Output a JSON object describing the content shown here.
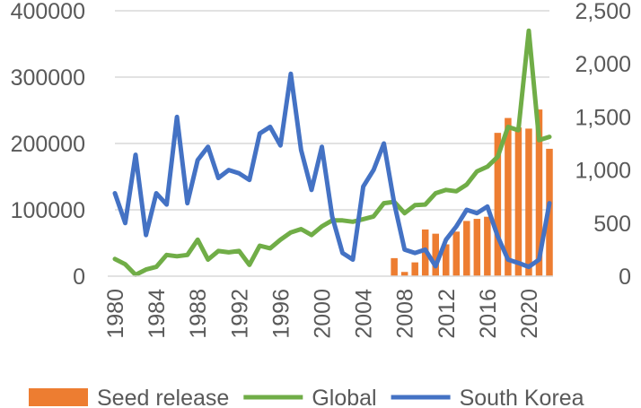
{
  "chart_data": {
    "type": "bar+line",
    "x": [
      1980,
      1981,
      1982,
      1983,
      1984,
      1985,
      1986,
      1987,
      1988,
      1989,
      1990,
      1991,
      1992,
      1993,
      1994,
      1995,
      1996,
      1997,
      1998,
      1999,
      2000,
      2001,
      2002,
      2003,
      2004,
      2005,
      2006,
      2007,
      2008,
      2009,
      2010,
      2011,
      2012,
      2013,
      2014,
      2015,
      2016,
      2017,
      2018,
      2019,
      2020,
      2021,
      2022
    ],
    "x_tick_labels": [
      "1980",
      "1984",
      "1988",
      "1992",
      "1996",
      "2000",
      "2004",
      "2008",
      "2012",
      "2016",
      "2020"
    ],
    "left_axis": {
      "ylim": [
        0,
        400000
      ],
      "ticks": [
        "0",
        "100000",
        "200000",
        "300000",
        "400000"
      ]
    },
    "right_axis": {
      "ylim": [
        0,
        2500
      ],
      "ticks": [
        "0",
        "500",
        "1,000",
        "1,500",
        "2,000",
        "2,500"
      ]
    },
    "grid": true,
    "legend_position": "bottom",
    "series": [
      {
        "name": "Seed release",
        "type": "bar",
        "axis": "right",
        "color": "#ED7D31",
        "values": [
          null,
          null,
          null,
          null,
          null,
          null,
          null,
          null,
          null,
          null,
          null,
          null,
          null,
          null,
          null,
          null,
          null,
          null,
          null,
          null,
          null,
          null,
          null,
          null,
          null,
          null,
          null,
          170,
          40,
          130,
          440,
          400,
          300,
          420,
          520,
          540,
          560,
          1350,
          1490,
          1400,
          1390,
          1570,
          1200
        ]
      },
      {
        "name": "Global",
        "type": "line",
        "axis": "left",
        "color": "#70AD47",
        "values": [
          26000,
          18000,
          2000,
          10000,
          14000,
          32000,
          30000,
          32000,
          55000,
          25000,
          38000,
          36000,
          38000,
          17000,
          46000,
          42000,
          55000,
          66000,
          71000,
          62000,
          75000,
          84000,
          84000,
          82000,
          86000,
          90000,
          110000,
          112000,
          95000,
          107000,
          108000,
          125000,
          130000,
          128000,
          138000,
          158000,
          165000,
          180000,
          225000,
          220000,
          370000,
          205000,
          210000
        ]
      },
      {
        "name": "South Korea",
        "type": "line",
        "axis": "left",
        "color": "#4472C4",
        "values": [
          125000,
          80000,
          183000,
          62000,
          125000,
          108000,
          240000,
          110000,
          175000,
          195000,
          148000,
          160000,
          155000,
          145000,
          215000,
          225000,
          197000,
          305000,
          190000,
          130000,
          195000,
          90000,
          35000,
          25000,
          135000,
          160000,
          200000,
          110000,
          40000,
          35000,
          40000,
          15000,
          55000,
          75000,
          100000,
          95000,
          105000,
          60000,
          25000,
          20000,
          14000,
          25000,
          110000
        ]
      }
    ]
  }
}
